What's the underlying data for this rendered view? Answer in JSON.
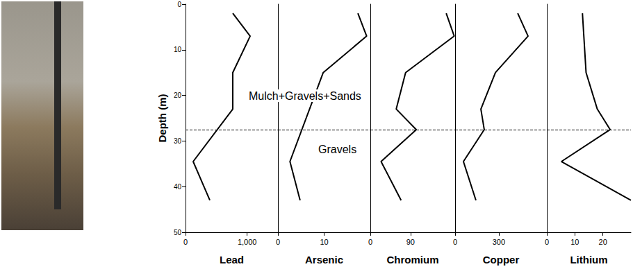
{
  "chart_data": {
    "type": "line",
    "y_label": "Depth (m)",
    "ylim": [
      0,
      50
    ],
    "yticks": [
      0,
      10,
      20,
      30,
      40,
      50
    ],
    "color": "#000000",
    "line_style": "solid",
    "grid": false,
    "annotations": [
      "Mulch+Gravels+Sands",
      "Gravels"
    ],
    "boundary_depth": 27.5,
    "panels": [
      {
        "x_label": "Lead",
        "xlim": [
          0,
          1500
        ],
        "xticks": [
          0,
          1000
        ],
        "y": [
          2,
          7,
          15,
          23,
          34.5,
          43
        ],
        "values": [
          767,
          1049,
          767,
          767,
          124,
          395
        ]
      },
      {
        "x_label": "Arsenic",
        "xlim": [
          0,
          20
        ],
        "xticks": [
          0,
          10
        ],
        "y": [
          2,
          7,
          15,
          34.5,
          43
        ],
        "values": [
          17.3,
          19.2,
          9.8,
          2.6,
          4.8
        ]
      },
      {
        "x_label": "Chromium",
        "xlim": [
          0,
          190
        ],
        "xticks": [
          0,
          90
        ],
        "y": [
          2,
          7,
          15,
          23,
          27.5,
          34.5,
          43
        ],
        "values": [
          170,
          188,
          79,
          58,
          103,
          24,
          69
        ]
      },
      {
        "x_label": "Copper",
        "xlim": [
          0,
          630
        ],
        "xticks": [
          0,
          300
        ],
        "y": [
          2,
          7,
          15,
          23,
          27.5,
          34.5,
          43
        ],
        "values": [
          430,
          501,
          277,
          177,
          200,
          57,
          143
        ]
      },
      {
        "x_label": "Lithium",
        "xlim": [
          0,
          30
        ],
        "xticks": [
          0,
          10,
          20
        ],
        "y": [
          2,
          7,
          15,
          23,
          27.5,
          34.5,
          43
        ],
        "values": [
          12.7,
          13.2,
          14,
          18,
          22.6,
          5.2,
          30
        ]
      }
    ]
  }
}
